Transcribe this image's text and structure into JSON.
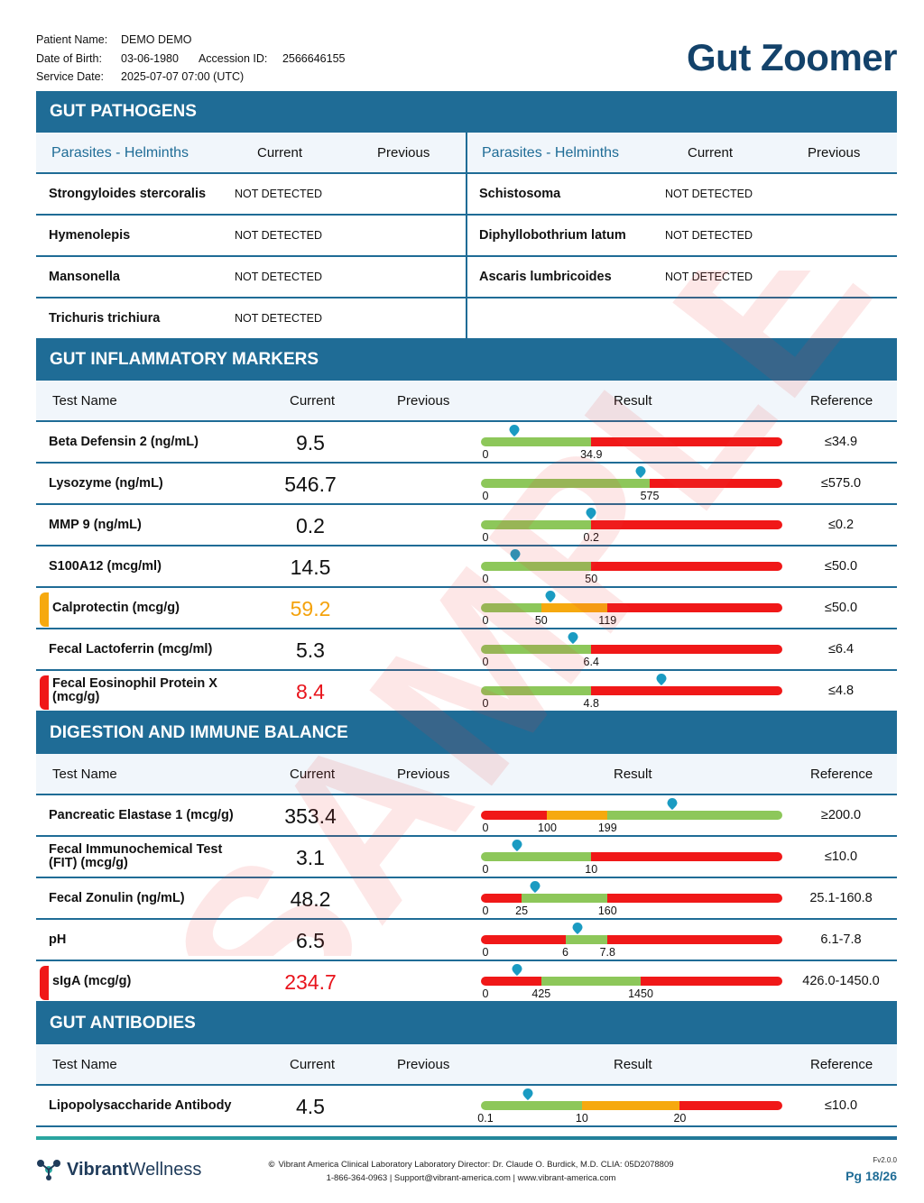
{
  "header": {
    "patient_name_label": "Patient Name:",
    "patient_name": "DEMO DEMO",
    "dob_label": "Date of Birth:",
    "dob": "03-06-1980",
    "accession_label": "Accession ID:",
    "accession": "2566646155",
    "service_date_label": "Service Date:",
    "service_date": "2025-07-07 07:00 (UTC)",
    "brand": "Gut Zoomer"
  },
  "watermark": "SAMPLE",
  "colors": {
    "section": "#1f6c96",
    "green": "#8dc75a",
    "red": "#f01818",
    "orange": "#f6a90f",
    "pin": "#1a9bc2",
    "brand": "#13426a"
  },
  "pathogens": {
    "title": "GUT PATHOGENS",
    "left_group": "Parasites - Helminths",
    "right_group": "Parasites - Helminths",
    "col_current": "Current",
    "col_previous": "Previous",
    "left": [
      {
        "name": "Strongyloides stercoralis",
        "result": "NOT DETECTED"
      },
      {
        "name": "Hymenolepis",
        "result": "NOT DETECTED"
      },
      {
        "name": "Mansonella",
        "result": "NOT DETECTED"
      },
      {
        "name": "Trichuris trichiura",
        "result": "NOT DETECTED"
      }
    ],
    "right": [
      {
        "name": "Schistosoma",
        "result": "NOT DETECTED"
      },
      {
        "name": "Diphyllobothrium latum",
        "result": "NOT DETECTED"
      },
      {
        "name": "Ascaris lumbricoides",
        "result": "NOT DETECTED"
      }
    ]
  },
  "columns": {
    "test_name": "Test Name",
    "current": "Current",
    "previous": "Previous",
    "result": "Result",
    "reference": "Reference"
  },
  "inflammatory": {
    "title": "GUT INFLAMMATORY MARKERS",
    "rows": [
      {
        "name": "Beta Defensin 2 (ng/mL)",
        "current": "9.5",
        "reference": "≤34.9",
        "status": "normal",
        "segments": [
          [
            "green",
            0.366
          ],
          [
            "red",
            0.634
          ]
        ],
        "ticks": [
          [
            "0",
            0.015
          ],
          [
            "34.9",
            0.366
          ]
        ],
        "marker": 0.11
      },
      {
        "name": "Lysozyme (ng/mL)",
        "current": "546.7",
        "reference": "≤575.0",
        "status": "normal",
        "segments": [
          [
            "green",
            0.56
          ],
          [
            "red",
            0.44
          ]
        ],
        "ticks": [
          [
            "0",
            0.015
          ],
          [
            "575",
            0.56
          ]
        ],
        "marker": 0.53
      },
      {
        "name": "MMP 9 (ng/mL)",
        "current": "0.2",
        "reference": "≤0.2",
        "status": "normal",
        "segments": [
          [
            "green",
            0.366
          ],
          [
            "red",
            0.634
          ]
        ],
        "ticks": [
          [
            "0",
            0.015
          ],
          [
            "0.2",
            0.366
          ]
        ],
        "marker": 0.366
      },
      {
        "name": "S100A12 (mcg/ml)",
        "current": "14.5",
        "reference": "≤50.0",
        "status": "normal",
        "segments": [
          [
            "green",
            0.366
          ],
          [
            "red",
            0.634
          ]
        ],
        "ticks": [
          [
            "0",
            0.015
          ],
          [
            "50",
            0.366
          ]
        ],
        "marker": 0.115
      },
      {
        "name": "Calprotectin (mcg/g)",
        "current": "59.2",
        "reference": "≤50.0",
        "status": "warn",
        "segments": [
          [
            "green",
            0.2
          ],
          [
            "orange",
            0.22
          ],
          [
            "red",
            0.58
          ]
        ],
        "ticks": [
          [
            "0",
            0.015
          ],
          [
            "50",
            0.2
          ],
          [
            "119",
            0.42
          ]
        ],
        "marker": 0.23
      },
      {
        "name": "Fecal Lactoferrin (mcg/ml)",
        "current": "5.3",
        "reference": "≤6.4",
        "status": "normal",
        "segments": [
          [
            "green",
            0.366
          ],
          [
            "red",
            0.634
          ]
        ],
        "ticks": [
          [
            "0",
            0.015
          ],
          [
            "6.4",
            0.366
          ]
        ],
        "marker": 0.305
      },
      {
        "name": "Fecal Eosinophil Protein X (mcg/g)",
        "current": "8.4",
        "reference": "≤4.8",
        "status": "alert",
        "segments": [
          [
            "green",
            0.366
          ],
          [
            "red",
            0.634
          ]
        ],
        "ticks": [
          [
            "0",
            0.015
          ],
          [
            "4.8",
            0.366
          ]
        ],
        "marker": 0.6
      }
    ]
  },
  "digestion": {
    "title": "DIGESTION AND IMMUNE BALANCE",
    "rows": [
      {
        "name": "Pancreatic Elastase 1 (mcg/g)",
        "current": "353.4",
        "reference": "≥200.0",
        "status": "normal",
        "segments": [
          [
            "red",
            0.22
          ],
          [
            "orange",
            0.2
          ],
          [
            "green",
            0.58
          ]
        ],
        "ticks": [
          [
            "0",
            0.015
          ],
          [
            "100",
            0.22
          ],
          [
            "199",
            0.42
          ]
        ],
        "marker": 0.635
      },
      {
        "name": "Fecal Immunochemical Test (FIT) (mcg/g)",
        "current": "3.1",
        "reference": "≤10.0",
        "status": "normal",
        "segments": [
          [
            "green",
            0.366
          ],
          [
            "red",
            0.634
          ]
        ],
        "ticks": [
          [
            "0",
            0.015
          ],
          [
            "10",
            0.366
          ]
        ],
        "marker": 0.12
      },
      {
        "name": "Fecal Zonulin (ng/mL)",
        "current": "48.2",
        "reference": "25.1-160.8",
        "status": "normal",
        "segments": [
          [
            "red",
            0.135
          ],
          [
            "green",
            0.285
          ],
          [
            "red",
            0.58
          ]
        ],
        "ticks": [
          [
            "0",
            0.015
          ],
          [
            "25",
            0.135
          ],
          [
            "160",
            0.42
          ]
        ],
        "marker": 0.18
      },
      {
        "name": "pH",
        "current": "6.5",
        "reference": "6.1-7.8",
        "status": "normal",
        "segments": [
          [
            "red",
            0.28
          ],
          [
            "green",
            0.14
          ],
          [
            "red",
            0.58
          ]
        ],
        "ticks": [
          [
            "0",
            0.015
          ],
          [
            "6",
            0.28
          ],
          [
            "7.8",
            0.42
          ]
        ],
        "marker": 0.32
      },
      {
        "name": "sIgA (mcg/g)",
        "current": "234.7",
        "reference": "426.0-1450.0",
        "status": "alert",
        "segments": [
          [
            "red",
            0.2
          ],
          [
            "green",
            0.33
          ],
          [
            "red",
            0.47
          ]
        ],
        "ticks": [
          [
            "0",
            0.015
          ],
          [
            "425",
            0.2
          ],
          [
            "1450",
            0.53
          ]
        ],
        "marker": 0.12
      }
    ]
  },
  "antibodies": {
    "title": "GUT ANTIBODIES",
    "rows": [
      {
        "name": "Lipopolysaccharide Antibody",
        "current": "4.5",
        "reference": "≤10.0",
        "status": "normal",
        "segments": [
          [
            "green",
            0.335
          ],
          [
            "orange",
            0.325
          ],
          [
            "red",
            0.34
          ]
        ],
        "ticks": [
          [
            "0.1",
            0.015
          ],
          [
            "10",
            0.335
          ],
          [
            "20",
            0.66
          ]
        ],
        "marker": 0.155
      }
    ]
  },
  "footer": {
    "logo_bold": "Vibrant",
    "logo_light": "Wellness",
    "line1": "Vibrant America Clinical Laboratory Laboratory Director: Dr. Claude O. Burdick, M.D. CLIA: 05D2078809",
    "line2": "1-866-364-0963 | Support@vibrant-america.com | www.vibrant-america.com",
    "copyright_symbol": "©",
    "version": "Fv2.0.0",
    "page": "Pg 18/26"
  }
}
